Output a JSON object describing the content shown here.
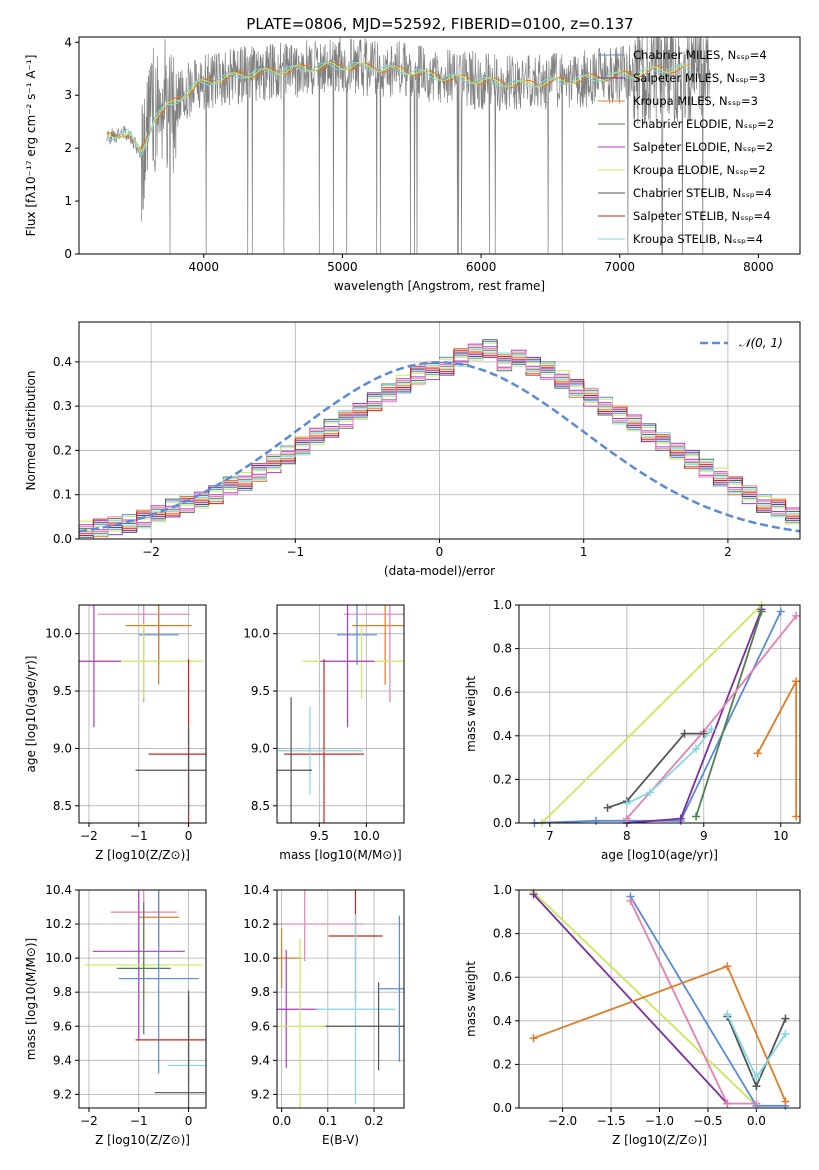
{
  "title": "PLATE=0806, MJD=52592, FIBERID=0100, z=0.137",
  "colors": {
    "chabrier_miles": "#5b8ad8",
    "salpeter_miles": "#7b2f9f",
    "kroupa_miles": "#e07c24",
    "chabrier_elodie": "#4f7f50",
    "salpeter_elodie": "#b03ac8",
    "kroupa_elodie": "#c9e85a",
    "chabrier_stelib": "#555555",
    "salpeter_stelib": "#cc2222",
    "kroupa_stelib": "#85d7e2",
    "pink": "#e680b4",
    "data": "#808080",
    "normal": "#5b8ad8"
  },
  "chart_data": [
    {
      "type": "line",
      "title": "PLATE=0806, MJD=52592, FIBERID=0100, z=0.137",
      "xlabel": "wavelength [Angstrom, rest frame]",
      "ylabel": "Flux [fλ10⁻¹⁷ erg cm⁻² s⁻¹ A⁻¹]",
      "xlim": [
        3100,
        8300
      ],
      "ylim": [
        0,
        4.1
      ],
      "xticks": [
        4000,
        5000,
        6000,
        7000,
        8000
      ],
      "yticks": [
        0,
        1,
        2,
        3,
        4
      ],
      "legend_position": "upper right",
      "legend": [
        "Chabrier MILES, N_SSP=4",
        "Salpeter MILES, N_SSP=3",
        "Kroupa MILES, N_SSP=3",
        "Chabrier ELODIE, N_SSP=2",
        "Salpeter ELODIE, N_SSP=2",
        "Kroupa ELODIE, N_SSP=2",
        "Chabrier STELIB, N_SSP=4",
        "Salpeter STELIB, N_SSP=4",
        "Kroupa STELIB, N_SSP=4"
      ],
      "continuum_x": [
        3300,
        3450,
        3550,
        3650,
        3800,
        3950,
        4100,
        4300,
        4500,
        4700,
        4900,
        5100,
        5300,
        5500,
        5700,
        5900,
        6100,
        6300,
        6500,
        6700,
        6900,
        7100,
        7300
      ],
      "continuum_y": [
        2.2,
        2.3,
        1.9,
        2.6,
        2.9,
        3.2,
        3.3,
        3.4,
        3.45,
        3.5,
        3.55,
        3.55,
        3.5,
        3.45,
        3.35,
        3.3,
        3.25,
        3.2,
        3.25,
        3.3,
        3.35,
        3.4,
        3.5
      ]
    },
    {
      "type": "bar",
      "xlabel": "(data-model)/error",
      "ylabel": "Normed distribution",
      "xlim": [
        -2.5,
        2.5
      ],
      "ylim": [
        0,
        0.49
      ],
      "xticks": [
        -2,
        -1,
        0,
        1,
        2
      ],
      "yticks": [
        0.0,
        0.1,
        0.2,
        0.3,
        0.4
      ],
      "legend": [
        "𝒩(0, 1)"
      ],
      "bin_width": 0.1,
      "bin_start": -2.5,
      "histogram": [
        0.02,
        0.025,
        0.03,
        0.035,
        0.045,
        0.055,
        0.07,
        0.08,
        0.09,
        0.1,
        0.12,
        0.13,
        0.15,
        0.17,
        0.19,
        0.21,
        0.23,
        0.25,
        0.27,
        0.29,
        0.31,
        0.33,
        0.35,
        0.37,
        0.38,
        0.39,
        0.41,
        0.42,
        0.43,
        0.4,
        0.41,
        0.39,
        0.38,
        0.36,
        0.34,
        0.32,
        0.3,
        0.28,
        0.26,
        0.24,
        0.22,
        0.2,
        0.18,
        0.16,
        0.14,
        0.12,
        0.1,
        0.08,
        0.07,
        0.05
      ]
    },
    {
      "type": "scatter",
      "xlabel": "Z [log10(Z/Z⊙)]",
      "ylabel": "age  [log10(age/yr)]",
      "xlim": [
        -2.2,
        0.35
      ],
      "ylim": [
        8.35,
        10.25
      ],
      "xticks": [
        -2,
        -1,
        0
      ],
      "yticks": [
        8.5,
        9.0,
        9.5,
        10.0
      ],
      "points": [
        {
          "series": "chabrier_miles",
          "x": -0.6,
          "y": 9.99
        },
        {
          "series": "kroupa_miles",
          "x": -0.6,
          "y": 10.07
        },
        {
          "series": "pink",
          "x": -0.9,
          "y": 10.17
        },
        {
          "series": "kroupa_elodie",
          "x": -0.9,
          "y": 9.76
        },
        {
          "series": "salpeter_elodie",
          "x": -1.9,
          "y": 9.76
        },
        {
          "series": "salpeter_stelib",
          "x": 0.0,
          "y": 8.95
        },
        {
          "series": "chabrier_stelib",
          "x": 0.0,
          "y": 8.81
        }
      ]
    },
    {
      "type": "scatter",
      "xlabel": "mass [log10(M/M⊙)]",
      "ylabel": "",
      "xlim": [
        9.05,
        10.4
      ],
      "ylim": [
        8.35,
        10.25
      ],
      "xticks": [
        9.5,
        10.0
      ],
      "yticks": [
        8.5,
        9.0,
        9.5,
        10.0
      ],
      "points": [
        {
          "series": "chabrier_miles",
          "x": 9.9,
          "y": 9.99
        },
        {
          "series": "kroupa_miles",
          "x": 10.2,
          "y": 10.07
        },
        {
          "series": "pink",
          "x": 10.25,
          "y": 10.17
        },
        {
          "series": "kroupa_elodie",
          "x": 9.95,
          "y": 9.76
        },
        {
          "series": "salpeter_elodie",
          "x": 9.8,
          "y": 9.76
        },
        {
          "series": "salpeter_stelib",
          "x": 9.55,
          "y": 8.95
        },
        {
          "series": "kroupa_stelib",
          "x": 9.4,
          "y": 8.98
        },
        {
          "series": "chabrier_stelib",
          "x": 9.2,
          "y": 8.81
        }
      ]
    },
    {
      "type": "line",
      "xlabel": "age  [log10(age/yr)]",
      "ylabel": "mass weight",
      "xlim": [
        6.6,
        10.25
      ],
      "ylim": [
        0,
        1.0
      ],
      "xticks": [
        7,
        8,
        9,
        10
      ],
      "yticks": [
        0.0,
        0.2,
        0.4,
        0.6,
        0.8,
        1.0
      ],
      "series": [
        {
          "color": "kroupa_elodie",
          "x": [
            6.9,
            9.75
          ],
          "y": [
            0.0,
            1.0
          ]
        },
        {
          "color": "chabrier_miles",
          "x": [
            6.8,
            7.6,
            8.7,
            10.0
          ],
          "y": [
            0.0,
            0.01,
            0.01,
            0.97
          ]
        },
        {
          "color": "salpeter_miles",
          "x": [
            8.0,
            8.7,
            9.75
          ],
          "y": [
            0.0,
            0.02,
            0.98
          ]
        },
        {
          "color": "chabrier_elodie",
          "x": [
            8.9,
            9.75
          ],
          "y": [
            0.03,
            0.97
          ]
        },
        {
          "color": "pink",
          "x": [
            8.0,
            9.0,
            10.2
          ],
          "y": [
            0.02,
            0.42,
            0.95
          ]
        },
        {
          "color": "kroupa_miles",
          "x": [
            9.7,
            10.2,
            10.2
          ],
          "y": [
            0.32,
            0.65,
            0.03
          ]
        },
        {
          "color": "chabrier_stelib",
          "x": [
            7.75,
            8.0,
            8.75,
            9.0
          ],
          "y": [
            0.07,
            0.1,
            0.41,
            0.41
          ]
        },
        {
          "color": "kroupa_stelib",
          "x": [
            8.0,
            8.3,
            8.9,
            9.1
          ],
          "y": [
            0.09,
            0.14,
            0.34,
            0.43
          ]
        }
      ]
    },
    {
      "type": "scatter",
      "xlabel": "Z [log10(Z/Z⊙)]",
      "ylabel": "mass [log10(M/M⊙)]",
      "xlim": [
        -2.2,
        0.35
      ],
      "ylim": [
        9.12,
        10.4
      ],
      "xticks": [
        -2,
        -1,
        0
      ],
      "yticks": [
        9.2,
        9.4,
        9.6,
        9.8,
        10.0,
        10.2,
        10.4
      ],
      "points": [
        {
          "series": "kroupa_miles",
          "x": -0.6,
          "y": 10.24
        },
        {
          "series": "pink",
          "x": -0.9,
          "y": 10.27
        },
        {
          "series": "salpeter_elodie",
          "x": -1.0,
          "y": 10.04
        },
        {
          "series": "kroupa_elodie",
          "x": -0.9,
          "y": 9.96
        },
        {
          "series": "chabrier_elodie",
          "x": -0.9,
          "y": 9.94
        },
        {
          "series": "chabrier_miles",
          "x": -0.6,
          "y": 9.88
        },
        {
          "series": "salpeter_stelib",
          "x": 0.0,
          "y": 9.52
        },
        {
          "series": "kroupa_stelib",
          "x": 0.0,
          "y": 9.37
        },
        {
          "series": "chabrier_stelib",
          "x": 0.0,
          "y": 9.21
        }
      ]
    },
    {
      "type": "scatter",
      "xlabel": "E(B-V)",
      "ylabel": "",
      "xlim": [
        -0.01,
        0.265
      ],
      "ylim": [
        9.12,
        10.4
      ],
      "xticks": [
        0.0,
        0.1,
        0.2
      ],
      "yticks": [
        9.2,
        9.4,
        9.6,
        9.8,
        10.0,
        10.2,
        10.4
      ],
      "points": [
        {
          "series": "kroupa_miles",
          "x": 0.0,
          "y": 10.0
        },
        {
          "series": "salpeter_elodie",
          "x": 0.01,
          "y": 9.7
        },
        {
          "series": "kroupa_elodie",
          "x": 0.04,
          "y": 9.6
        },
        {
          "series": "pink",
          "x": 0.05,
          "y": 10.2
        },
        {
          "series": "salpeter_stelib",
          "x": 0.16,
          "y": 10.13
        },
        {
          "series": "kroupa_stelib",
          "x": 0.16,
          "y": 9.7
        },
        {
          "series": "chabrier_stelib",
          "x": 0.21,
          "y": 9.6
        },
        {
          "series": "chabrier_miles",
          "x": 0.255,
          "y": 9.82
        }
      ]
    },
    {
      "type": "line",
      "xlabel": "Z [log10(Z/Z⊙)]",
      "ylabel": "mass weight",
      "xlim": [
        -2.45,
        0.45
      ],
      "ylim": [
        0,
        1.0
      ],
      "xticks": [
        -2.0,
        -1.5,
        -1.0,
        -0.5,
        0.0
      ],
      "yticks": [
        0.0,
        0.2,
        0.4,
        0.6,
        0.8,
        1.0
      ],
      "series": [
        {
          "color": "kroupa_elodie",
          "x": [
            -2.3,
            0.0
          ],
          "y": [
            0.99,
            0.01
          ]
        },
        {
          "color": "salpeter_miles",
          "x": [
            -2.3,
            -0.3
          ],
          "y": [
            0.98,
            0.02
          ]
        },
        {
          "color": "chabrier_miles",
          "x": [
            -1.3,
            0.0,
            0.3
          ],
          "y": [
            0.97,
            0.01,
            0.01
          ]
        },
        {
          "color": "pink",
          "x": [
            -1.3,
            -0.3,
            0.0
          ],
          "y": [
            0.95,
            0.02,
            0.02
          ]
        },
        {
          "color": "kroupa_miles",
          "x": [
            -2.3,
            -0.3,
            0.3
          ],
          "y": [
            0.32,
            0.65,
            0.03
          ]
        },
        {
          "color": "chabrier_stelib",
          "x": [
            -0.3,
            0.0,
            0.3
          ],
          "y": [
            0.42,
            0.1,
            0.41
          ]
        },
        {
          "color": "kroupa_stelib",
          "x": [
            -0.3,
            0.0,
            0.3
          ],
          "y": [
            0.43,
            0.14,
            0.34
          ]
        }
      ]
    }
  ]
}
